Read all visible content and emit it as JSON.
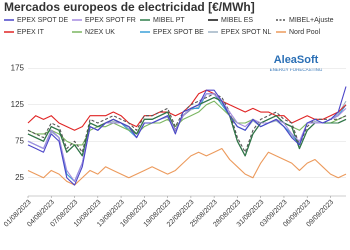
{
  "chart_data": {
    "type": "line",
    "title": "Mercados europeos de electricidad [€/MWh]",
    "logo": {
      "name": "AleaSoft",
      "tagline": "ENERGY FORECASTING"
    },
    "categories": [
      "01/08/2023",
      null,
      null,
      "04/08/2023",
      null,
      null,
      "07/08/2023",
      null,
      null,
      "10/08/2023",
      null,
      null,
      "13/08/2023",
      null,
      null,
      "16/08/2023",
      null,
      null,
      "19/08/2023",
      null,
      null,
      "22/08/2023",
      null,
      null,
      "25/08/2023",
      null,
      null,
      "28/08/2023",
      null,
      null,
      "31/08/2023",
      null,
      null,
      "03/09/2023",
      null,
      null,
      "06/09/2023",
      null,
      null,
      "09/09/2023",
      null,
      null
    ],
    "ylim": [
      0,
      200
    ],
    "yticks": [
      25,
      75,
      125,
      175
    ],
    "grid": true,
    "series": [
      {
        "name": "EPEX SPOT DE",
        "color": "#4b45c8",
        "values": [
          70,
          65,
          60,
          85,
          75,
          25,
          15,
          40,
          95,
          90,
          100,
          105,
          100,
          95,
          80,
          100,
          100,
          105,
          110,
          85,
          115,
          120,
          125,
          145,
          145,
          130,
          110,
          95,
          90,
          105,
          95,
          100,
          105,
          95,
          80,
          70,
          100,
          105,
          100,
          105,
          115,
          150
        ]
      },
      {
        "name": "EPEX SPOT FR",
        "color": "#a58be0",
        "values": [
          75,
          70,
          65,
          90,
          80,
          35,
          20,
          45,
          95,
          90,
          100,
          100,
          100,
          95,
          80,
          100,
          100,
          105,
          110,
          90,
          110,
          120,
          125,
          140,
          140,
          130,
          115,
          100,
          95,
          105,
          100,
          100,
          105,
          100,
          85,
          75,
          100,
          100,
          100,
          105,
          110,
          120
        ]
      },
      {
        "name": "MIBEL PT",
        "color": "#2f7d4a",
        "values": [
          85,
          80,
          75,
          95,
          90,
          60,
          70,
          55,
          100,
          95,
          100,
          105,
          100,
          95,
          85,
          105,
          105,
          110,
          115,
          90,
          110,
          120,
          125,
          130,
          135,
          130,
          110,
          75,
          55,
          85,
          100,
          105,
          110,
          100,
          95,
          65,
          90,
          100,
          100,
          100,
          100,
          105
        ]
      },
      {
        "name": "MIBEL ES",
        "color": "#111111",
        "values": [
          85,
          80,
          75,
          95,
          90,
          60,
          70,
          55,
          100,
          95,
          100,
          105,
          100,
          95,
          85,
          105,
          105,
          110,
          115,
          90,
          110,
          120,
          125,
          130,
          135,
          130,
          110,
          75,
          55,
          85,
          100,
          105,
          110,
          100,
          95,
          65,
          90,
          100,
          100,
          100,
          100,
          105
        ]
      },
      {
        "name": "MIBEL+Ajuste",
        "color": "#555555",
        "dashed": true,
        "values": [
          90,
          85,
          80,
          100,
          95,
          65,
          75,
          60,
          105,
          100,
          105,
          110,
          105,
          100,
          90,
          110,
          110,
          115,
          120,
          95,
          115,
          125,
          130,
          135,
          140,
          135,
          115,
          80,
          60,
          90,
          105,
          110,
          115,
          105,
          100,
          70,
          95,
          105,
          105,
          105,
          105,
          110
        ]
      },
      {
        "name": "EPEX IT",
        "color": "#e02424",
        "values": [
          100,
          110,
          105,
          110,
          100,
          95,
          90,
          95,
          110,
          110,
          110,
          115,
          110,
          100,
          95,
          110,
          110,
          115,
          115,
          110,
          115,
          125,
          140,
          145,
          140,
          130,
          125,
          120,
          115,
          120,
          115,
          115,
          110,
          110,
          100,
          105,
          110,
          105,
          105,
          110,
          115,
          125
        ]
      },
      {
        "name": "N2EX UK",
        "color": "#7bb661",
        "values": [
          90,
          85,
          85,
          90,
          85,
          75,
          70,
          70,
          90,
          95,
          95,
          100,
          95,
          90,
          85,
          95,
          100,
          100,
          105,
          95,
          105,
          110,
          115,
          125,
          130,
          120,
          110,
          100,
          100,
          105,
          100,
          100,
          105,
          100,
          95,
          90,
          100,
          100,
          100,
          100,
          105,
          110
        ]
      },
      {
        "name": "EPEX SPOT BE",
        "color": "#3aa0d8",
        "values": [
          75,
          70,
          65,
          90,
          80,
          30,
          20,
          45,
          95,
          90,
          100,
          100,
          100,
          90,
          80,
          100,
          100,
          105,
          110,
          90,
          110,
          120,
          120,
          140,
          140,
          125,
          110,
          95,
          90,
          105,
          95,
          100,
          105,
          95,
          85,
          70,
          100,
          100,
          100,
          105,
          110,
          125
        ]
      },
      {
        "name": "EPEX SPOT NL",
        "color": "#9fb2c4",
        "values": [
          75,
          70,
          65,
          88,
          80,
          30,
          20,
          45,
          95,
          90,
          100,
          102,
          100,
          92,
          80,
          100,
          100,
          105,
          108,
          88,
          110,
          118,
          122,
          140,
          140,
          128,
          110,
          95,
          90,
          103,
          95,
          100,
          103,
          95,
          82,
          72,
          100,
          102,
          100,
          105,
          112,
          130
        ]
      },
      {
        "name": "Nord Pool",
        "color": "#ec9a5c",
        "values": [
          35,
          30,
          25,
          35,
          30,
          20,
          15,
          25,
          35,
          30,
          40,
          35,
          30,
          25,
          30,
          35,
          40,
          35,
          30,
          35,
          45,
          55,
          60,
          55,
          60,
          65,
          50,
          40,
          30,
          25,
          45,
          60,
          55,
          50,
          45,
          35,
          45,
          50,
          40,
          30,
          25,
          30
        ]
      }
    ]
  }
}
